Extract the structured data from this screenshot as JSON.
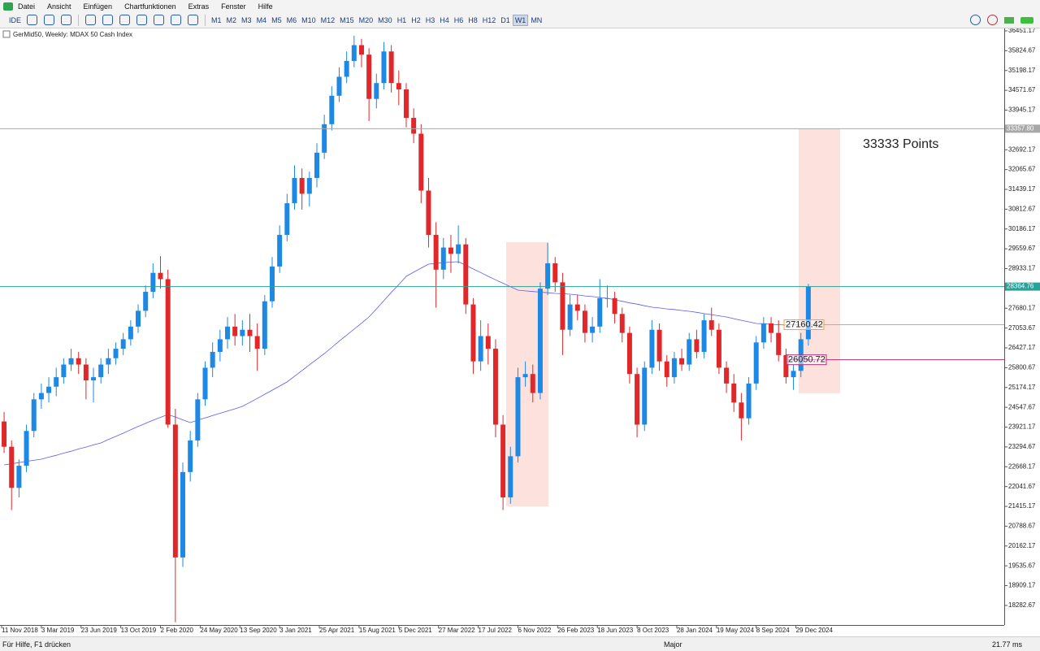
{
  "menu": [
    "Datei",
    "Ansicht",
    "Einfügen",
    "Chartfunktionen",
    "Extras",
    "Fenster",
    "Hilfe"
  ],
  "toolbar": {
    "ide": "IDE",
    "timeframes": [
      "M1",
      "M2",
      "M3",
      "M4",
      "M5",
      "M6",
      "M10",
      "M12",
      "M15",
      "M20",
      "M30",
      "H1",
      "H2",
      "H3",
      "H4",
      "H6",
      "H8",
      "H12",
      "D1",
      "W1",
      "MN"
    ],
    "active": "W1"
  },
  "chart_data": {
    "type": "candlestick",
    "title": "GerMid50, Weekly:  MDAX 50 Cash Index",
    "up_color": "#1e88e5",
    "down_color": "#e0282a",
    "ylim": [
      17664,
      36528
    ],
    "yticks": [
      36451.17,
      35824.67,
      35198.17,
      34571.67,
      33945.17,
      32692.17,
      32065.67,
      31439.17,
      30812.67,
      30186.17,
      29559.67,
      28933.17,
      27680.17,
      27053.67,
      26427.17,
      25800.67,
      25174.17,
      24547.67,
      23921.17,
      23294.67,
      22668.17,
      22041.67,
      21415.17,
      20788.67,
      20162.17,
      19535.67,
      18909.17,
      18282.67
    ],
    "x_labels": [
      "11 Nov 2018",
      "3 Mar 2019",
      "23 Jun 2019",
      "13 Oct 2019",
      "2 Feb 2020",
      "24 May 2020",
      "13 Sep 2020",
      "3 Jan 2021",
      "25 Apr 2021",
      "15 Aug 2021",
      "5 Dec 2021",
      "27 Mar 2022",
      "17 Jul 2022",
      "6 Nov 2022",
      "26 Feb 2023",
      "18 Jun 2023",
      "8 Oct 2023",
      "28 Jan 2024",
      "19 May 2024",
      "8 Sep 2024",
      "29 Dec 2024"
    ],
    "ohlc": [
      [
        24100,
        24400,
        23100,
        23300
      ],
      [
        23300,
        23500,
        21300,
        22000
      ],
      [
        22000,
        22900,
        21700,
        22700
      ],
      [
        22700,
        24000,
        22500,
        23800
      ],
      [
        23800,
        25000,
        23600,
        24800
      ],
      [
        24800,
        25300,
        24500,
        25000
      ],
      [
        25000,
        25500,
        24700,
        25200
      ],
      [
        25200,
        25800,
        24900,
        25500
      ],
      [
        25500,
        26100,
        25300,
        25900
      ],
      [
        25900,
        26400,
        25700,
        26100
      ],
      [
        26100,
        26300,
        25600,
        25900
      ],
      [
        25900,
        26100,
        24800,
        25400
      ],
      [
        25400,
        25800,
        24700,
        25500
      ],
      [
        25500,
        26100,
        25300,
        25900
      ],
      [
        25900,
        26400,
        25600,
        26100
      ],
      [
        26100,
        26600,
        25900,
        26400
      ],
      [
        26400,
        26900,
        26200,
        26700
      ],
      [
        26700,
        27300,
        26500,
        27100
      ],
      [
        27100,
        27800,
        26900,
        27600
      ],
      [
        27600,
        28400,
        27400,
        28200
      ],
      [
        28200,
        29100,
        28000,
        28800
      ],
      [
        28800,
        29330,
        28300,
        28600
      ],
      [
        28600,
        28900,
        23900,
        24000
      ],
      [
        24000,
        24500,
        17750,
        19800
      ],
      [
        19800,
        22800,
        19500,
        22500
      ],
      [
        22500,
        23800,
        22200,
        23500
      ],
      [
        23500,
        25000,
        23300,
        24800
      ],
      [
        24800,
        26000,
        24600,
        25800
      ],
      [
        25800,
        26600,
        25500,
        26300
      ],
      [
        26300,
        27000,
        26000,
        26700
      ],
      [
        26700,
        27400,
        26400,
        27100
      ],
      [
        27100,
        27500,
        26500,
        26800
      ],
      [
        26800,
        27300,
        26500,
        27000
      ],
      [
        27000,
        27500,
        26300,
        26800
      ],
      [
        26800,
        27200,
        25700,
        26400
      ],
      [
        26400,
        28100,
        26200,
        27900
      ],
      [
        27900,
        29300,
        27700,
        29000
      ],
      [
        29000,
        30300,
        28800,
        30000
      ],
      [
        30000,
        31300,
        29800,
        31000
      ],
      [
        31000,
        32200,
        30800,
        31800
      ],
      [
        31800,
        32100,
        30800,
        31300
      ],
      [
        31300,
        32000,
        30900,
        31800
      ],
      [
        31800,
        32900,
        31500,
        32600
      ],
      [
        32600,
        33800,
        32400,
        33500
      ],
      [
        33500,
        34700,
        33300,
        34400
      ],
      [
        34400,
        35300,
        34200,
        35000
      ],
      [
        35000,
        35800,
        34800,
        35500
      ],
      [
        35500,
        36300,
        35300,
        36000
      ],
      [
        36000,
        36200,
        35300,
        35700
      ],
      [
        35700,
        35900,
        33600,
        34300
      ],
      [
        34300,
        35100,
        34000,
        34800
      ],
      [
        34800,
        36100,
        34600,
        35800
      ],
      [
        35800,
        36000,
        34500,
        34800
      ],
      [
        34800,
        35200,
        34100,
        34600
      ],
      [
        34600,
        34800,
        33400,
        33700
      ],
      [
        33700,
        34000,
        32900,
        33200
      ],
      [
        33200,
        33500,
        31000,
        31400
      ],
      [
        31400,
        31800,
        29600,
        30000
      ],
      [
        30000,
        30400,
        27700,
        28900
      ],
      [
        28900,
        29900,
        28600,
        29600
      ],
      [
        29600,
        30000,
        28800,
        29400
      ],
      [
        29400,
        30300,
        29100,
        29700
      ],
      [
        29700,
        29900,
        27500,
        27800
      ],
      [
        27800,
        28000,
        25600,
        26000
      ],
      [
        26000,
        27300,
        25700,
        26800
      ],
      [
        26800,
        27200,
        25900,
        26400
      ],
      [
        26400,
        26700,
        23600,
        24000
      ],
      [
        24000,
        24300,
        21300,
        21700
      ],
      [
        21700,
        23300,
        21500,
        23000
      ],
      [
        23000,
        25800,
        22800,
        25500
      ],
      [
        25500,
        26000,
        25200,
        25600
      ],
      [
        25600,
        25900,
        24700,
        25000
      ],
      [
        25000,
        28500,
        24800,
        28300
      ],
      [
        28300,
        29750,
        28100,
        29100
      ],
      [
        29100,
        29300,
        28200,
        28500
      ],
      [
        28500,
        28800,
        26200,
        27000
      ],
      [
        27000,
        28100,
        26800,
        27800
      ],
      [
        27800,
        28100,
        27300,
        27600
      ],
      [
        27600,
        27800,
        26600,
        26900
      ],
      [
        26900,
        27400,
        26600,
        27100
      ],
      [
        27100,
        28600,
        26900,
        28000
      ],
      [
        28000,
        28400,
        27700,
        28000
      ],
      [
        28000,
        28200,
        27200,
        27500
      ],
      [
        27500,
        27700,
        26600,
        26900
      ],
      [
        26900,
        27100,
        25300,
        25600
      ],
      [
        25600,
        25800,
        23600,
        24000
      ],
      [
        24000,
        26000,
        23800,
        25800
      ],
      [
        25800,
        27300,
        25600,
        27000
      ],
      [
        27000,
        27200,
        25700,
        26000
      ],
      [
        26000,
        26200,
        25200,
        25500
      ],
      [
        25500,
        26300,
        25300,
        26100
      ],
      [
        26100,
        26400,
        25700,
        25900
      ],
      [
        25900,
        26900,
        25700,
        26700
      ],
      [
        26700,
        27000,
        26100,
        26300
      ],
      [
        26300,
        27500,
        26100,
        27300
      ],
      [
        27300,
        27700,
        26800,
        27000
      ],
      [
        27000,
        27200,
        25600,
        25800
      ],
      [
        25800,
        26000,
        25000,
        25300
      ],
      [
        25300,
        25600,
        24400,
        24700
      ],
      [
        24700,
        25000,
        23500,
        24200
      ],
      [
        24200,
        25500,
        24000,
        25300
      ],
      [
        25300,
        26800,
        25100,
        26600
      ],
      [
        26600,
        27400,
        26400,
        27200
      ],
      [
        27200,
        27400,
        26600,
        26900
      ],
      [
        26900,
        27300,
        26000,
        26200
      ],
      [
        26200,
        26400,
        25300,
        25500
      ],
      [
        25500,
        25900,
        25100,
        25700
      ],
      [
        25700,
        26900,
        25500,
        26700
      ],
      [
        26700,
        28450,
        26500,
        28364.76
      ]
    ],
    "ma": {
      "color": "#5b5bf0",
      "values": [
        22727,
        22760,
        22800,
        22840,
        22870,
        22907,
        22970,
        23030,
        23100,
        23160,
        23230,
        23290,
        23360,
        23421,
        23530,
        23630,
        23730,
        23840,
        23940,
        24040,
        24140,
        24230,
        24320,
        24240,
        24150,
        24064,
        24140,
        24210,
        24290,
        24360,
        24430,
        24500,
        24578,
        24700,
        24830,
        24960,
        25090,
        25220,
        25349,
        25530,
        25710,
        25890,
        26070,
        26249,
        26440,
        26640,
        26830,
        27020,
        27210,
        27405,
        27660,
        27920,
        28180,
        28430,
        28690,
        28820,
        28950,
        29076,
        29100,
        29120,
        29140,
        29153,
        29040,
        28920,
        28810,
        28690,
        28580,
        28470,
        28360,
        28253,
        28230,
        28210,
        28190,
        28170,
        28150,
        28140,
        28124,
        28100,
        28070,
        28050,
        28020,
        27996,
        27950,
        27900,
        27850,
        27810,
        27760,
        27713,
        27690,
        27660,
        27640,
        27610,
        27585,
        27550,
        27510,
        27480,
        27440,
        27405,
        27350,
        27300,
        27250,
        27200,
        27190,
        27170,
        27160,
        27148,
        null,
        null,
        null
      ]
    },
    "hlines": [
      {
        "price": 33357.8,
        "price_label": "33357.80",
        "color": "#a8a8a8"
      },
      {
        "price": 28364.76,
        "color": "#2aa198"
      },
      {
        "price": 27160.42,
        "color": "#f0a830"
      },
      {
        "price": 26050.72,
        "color": "#b0307a"
      }
    ],
    "rectangles": [
      {
        "top": 29770,
        "bottom": 21415,
        "color": "#fde1dd"
      },
      {
        "top": 33357.8,
        "bottom": 24990,
        "color": "#fde1dd"
      }
    ],
    "annotation": {
      "text": "33333 Points",
      "color": "#e02020"
    }
  },
  "status_bar": {
    "help": "Für Hilfe, F1 drücken",
    "profile": "Major",
    "ping": "21.77 ms"
  }
}
